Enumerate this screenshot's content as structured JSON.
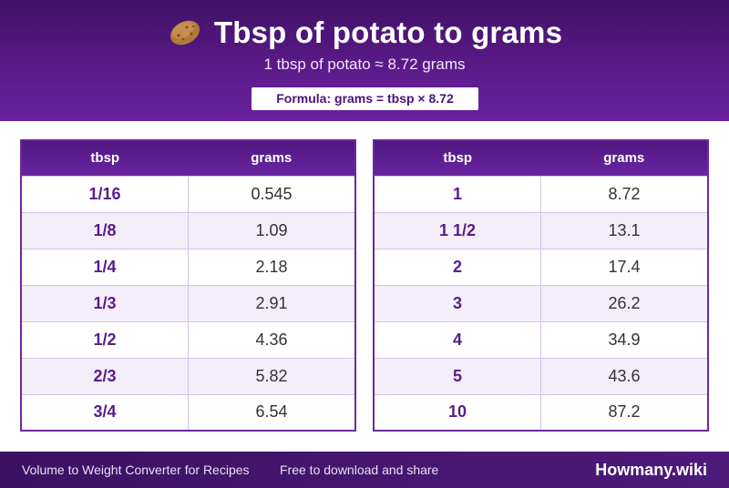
{
  "header": {
    "icon": "potato-icon",
    "title": "Tbsp of potato to grams",
    "subtitle": "1 tbsp of potato ≈ 8.72 grams",
    "formula": "Formula: grams = tbsp × 8.72"
  },
  "tables": [
    {
      "headers": [
        "tbsp",
        "grams"
      ],
      "rows": [
        [
          "1/16",
          "0.545"
        ],
        [
          "1/8",
          "1.09"
        ],
        [
          "1/4",
          "2.18"
        ],
        [
          "1/3",
          "2.91"
        ],
        [
          "1/2",
          "4.36"
        ],
        [
          "2/3",
          "5.82"
        ],
        [
          "3/4",
          "6.54"
        ]
      ]
    },
    {
      "headers": [
        "tbsp",
        "grams"
      ],
      "rows": [
        [
          "1",
          "8.72"
        ],
        [
          "1 1/2",
          "13.1"
        ],
        [
          "2",
          "17.4"
        ],
        [
          "3",
          "26.2"
        ],
        [
          "4",
          "34.9"
        ],
        [
          "5",
          "43.6"
        ],
        [
          "10",
          "87.2"
        ]
      ]
    }
  ],
  "footer": {
    "left": "Volume to Weight Converter for Recipes",
    "middle": "Free to download and share",
    "brand": "Howmany.wiki"
  },
  "colors": {
    "header_bg": "#5b1a88",
    "accent": "#6a2a9a",
    "row_alt": "#f4eefa"
  }
}
